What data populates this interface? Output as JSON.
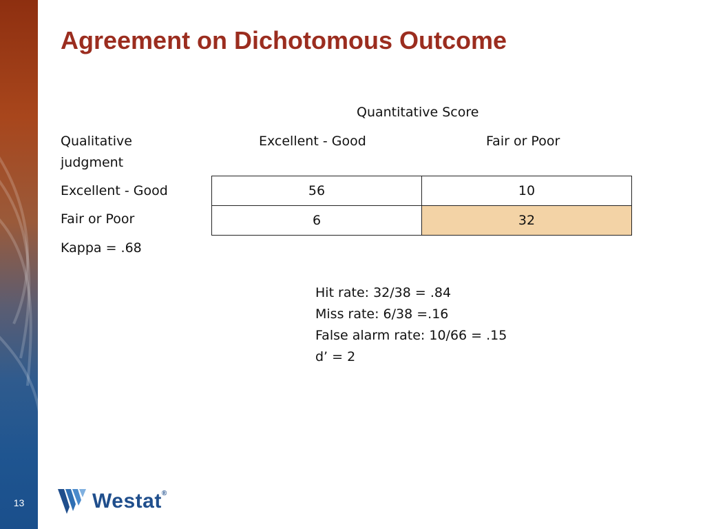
{
  "slide": {
    "title": "Agreement on Dichotomous Outcome",
    "page_number": "13"
  },
  "table": {
    "super_header": "Quantitative Score",
    "row_header_label_line1": "Qualitative",
    "row_header_label_line2": "judgment",
    "col_headers": [
      "Excellent - Good",
      "Fair or Poor"
    ],
    "rows": [
      {
        "label": "Excellent - Good",
        "cells": [
          "56",
          "10"
        ]
      },
      {
        "label": "Fair or Poor",
        "cells": [
          "6",
          "32"
        ]
      }
    ],
    "highlight_color": "#f3d3a6"
  },
  "kappa": "Kappa = .68",
  "notes": [
    "Hit rate: 32/38 = .84",
    "Miss rate: 6/38 =.16",
    "False alarm rate: 10/66 = .15",
    "d’ = 2"
  ],
  "logo": {
    "text": "Westat",
    "registered": "®"
  },
  "colors": {
    "title": "#9b2d1f",
    "logo": "#1f4e8c"
  }
}
